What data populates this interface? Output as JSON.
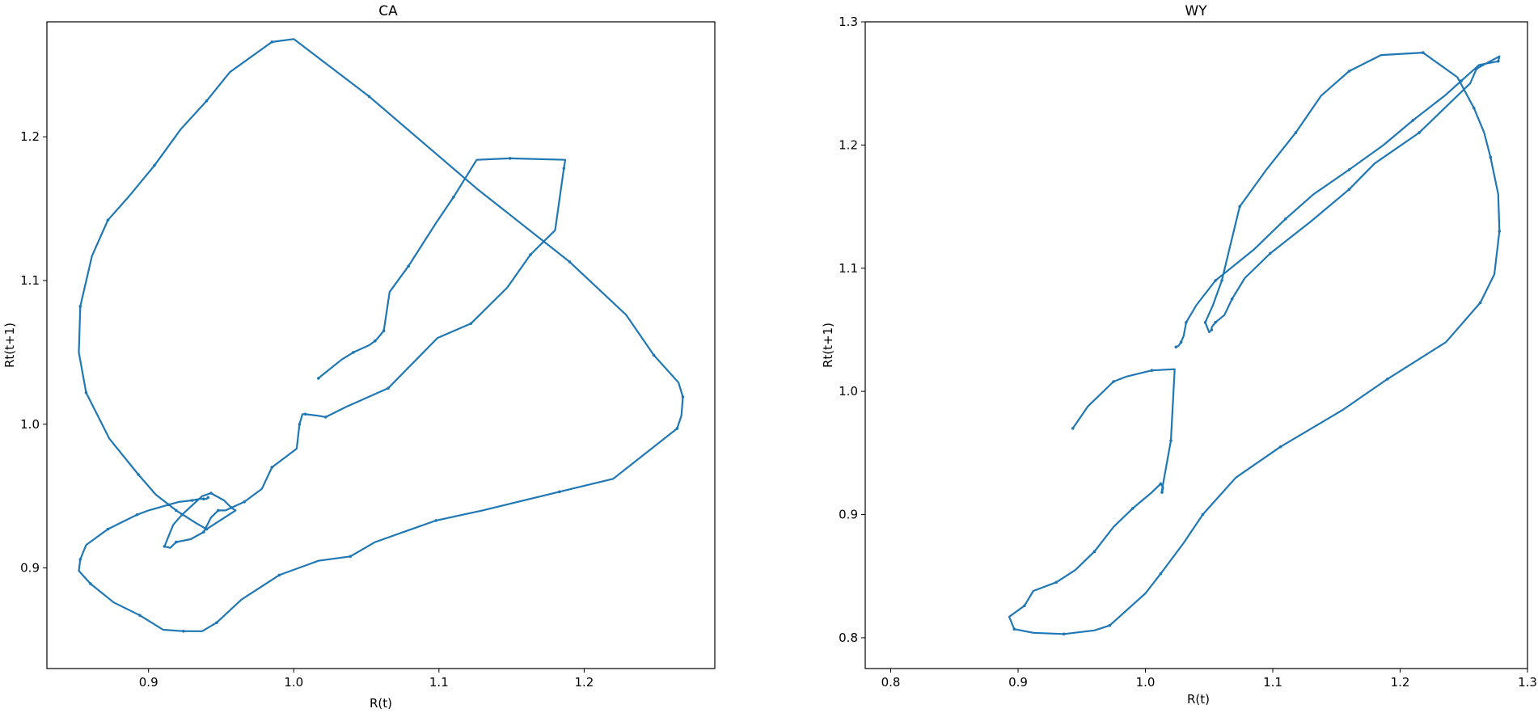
{
  "chart_data": [
    {
      "type": "line",
      "title": "CA",
      "xlabel": "R(t)",
      "ylabel": "Rt(t+1)",
      "xlim": [
        0.83,
        1.29
      ],
      "ylim": [
        0.83,
        1.28
      ],
      "xticks": [
        0.9,
        1.0,
        1.1,
        1.2
      ],
      "xtick_labels": [
        "0.9",
        "1.0",
        "1.1",
        "1.2"
      ],
      "yticks": [
        0.9,
        1.0,
        1.1,
        1.2
      ],
      "ytick_labels": [
        "0.9",
        "1.0",
        "1.1",
        "1.2"
      ],
      "grid": false,
      "line_color": "#1f77b4",
      "series": [
        {
          "x": [
            1.017,
            1.033,
            1.041,
            1.052,
            1.056,
            1.058,
            1.062,
            1.066,
            1.079,
            1.098,
            1.11,
            1.126,
            1.149,
            1.187,
            1.186,
            1.18,
            1.163,
            1.147,
            1.122,
            1.099,
            1.065,
            1.036,
            1.022,
            1.016,
            1.008,
            1.006,
            1.004,
            1.002,
            0.985,
            0.978,
            0.966,
            0.953,
            0.948,
            0.943,
            0.938,
            0.929,
            0.919,
            0.915,
            0.911,
            0.917,
            0.923,
            0.937,
            0.943,
            0.952,
            0.957,
            0.96,
            0.94,
            0.933,
            0.919,
            0.905,
            0.893,
            0.873,
            0.857,
            0.852,
            0.853,
            0.861,
            0.872,
            0.886,
            0.904,
            0.922,
            0.94,
            0.956,
            0.985,
            1.0,
            1.052,
            1.126,
            1.19,
            1.229,
            1.248,
            1.265,
            1.268,
            1.267,
            1.264,
            1.22,
            1.183,
            1.13,
            1.098,
            1.056,
            1.039,
            1.017,
            0.99,
            0.964,
            0.947,
            0.937,
            0.924,
            0.91,
            0.894,
            0.876,
            0.86,
            0.852,
            0.853,
            0.857,
            0.872,
            0.884,
            0.892,
            0.9,
            0.914,
            0.921,
            0.93,
            0.935,
            0.938,
            0.94,
            0.941
          ],
          "y": [
            1.032,
            1.045,
            1.05,
            1.055,
            1.058,
            1.06,
            1.065,
            1.092,
            1.11,
            1.14,
            1.158,
            1.184,
            1.185,
            1.184,
            1.178,
            1.135,
            1.118,
            1.095,
            1.07,
            1.06,
            1.025,
            1.012,
            1.005,
            1.006,
            1.007,
            1.007,
            1.0,
            0.983,
            0.97,
            0.955,
            0.946,
            0.94,
            0.94,
            0.935,
            0.925,
            0.92,
            0.918,
            0.914,
            0.915,
            0.93,
            0.937,
            0.95,
            0.952,
            0.947,
            0.942,
            0.94,
            0.927,
            0.931,
            0.94,
            0.951,
            0.965,
            0.99,
            1.022,
            1.05,
            1.082,
            1.117,
            1.142,
            1.158,
            1.18,
            1.205,
            1.225,
            1.245,
            1.266,
            1.268,
            1.228,
            1.164,
            1.113,
            1.076,
            1.048,
            1.029,
            1.019,
            1.006,
            0.997,
            0.962,
            0.953,
            0.94,
            0.933,
            0.918,
            0.908,
            0.905,
            0.895,
            0.878,
            0.862,
            0.856,
            0.856,
            0.857,
            0.867,
            0.876,
            0.889,
            0.898,
            0.906,
            0.916,
            0.927,
            0.933,
            0.937,
            0.94,
            0.944,
            0.946,
            0.947,
            0.948,
            0.948,
            0.948,
            0.949
          ]
        }
      ]
    },
    {
      "type": "line",
      "title": "WY",
      "xlabel": "R(t)",
      "ylabel": "Rt(t+1)",
      "xlim": [
        0.78,
        1.3
      ],
      "ylim": [
        0.775,
        1.3
      ],
      "xticks": [
        0.8,
        0.9,
        1.0,
        1.1,
        1.2,
        1.3
      ],
      "xtick_labels": [
        "0.8",
        "0.9",
        "1.0",
        "1.1",
        "1.2",
        "1.3"
      ],
      "yticks": [
        0.8,
        0.9,
        1.0,
        1.1,
        1.2,
        1.3
      ],
      "ytick_labels": [
        "0.8",
        "0.9",
        "1.0",
        "1.1",
        "1.2",
        "1.3"
      ],
      "grid": false,
      "line_color": "#1f77b4",
      "series": [
        {
          "x": [
            0.943,
            0.955,
            0.975,
            0.985,
            1.005,
            1.023,
            1.02,
            1.013,
            1.013,
            1.014,
            1.012,
            1.005,
            0.99,
            0.975,
            0.96,
            0.945,
            0.93,
            0.912,
            0.905,
            0.893,
            0.897,
            0.912,
            0.936,
            0.96,
            0.972,
            1.0,
            1.012,
            1.03,
            1.045,
            1.071,
            1.106,
            1.155,
            1.19,
            1.236,
            1.263,
            1.274,
            1.278,
            1.277,
            1.271,
            1.266,
            1.258,
            1.245,
            1.218,
            1.185,
            1.16,
            1.138,
            1.118,
            1.095,
            1.074,
            1.067,
            1.06,
            1.053,
            1.047,
            1.05,
            1.052,
            1.052,
            1.055,
            1.062,
            1.068,
            1.078,
            1.098,
            1.13,
            1.16,
            1.18,
            1.215,
            1.255,
            1.26,
            1.278,
            1.277,
            1.262,
            1.248,
            1.235,
            1.21,
            1.187,
            1.16,
            1.132,
            1.11,
            1.085,
            1.055,
            1.04,
            1.032,
            1.03,
            1.028,
            1.026,
            1.024
          ],
          "y": [
            0.97,
            0.988,
            1.008,
            1.012,
            1.017,
            1.018,
            0.96,
            0.92,
            0.918,
            0.922,
            0.925,
            0.918,
            0.905,
            0.89,
            0.87,
            0.855,
            0.845,
            0.838,
            0.826,
            0.817,
            0.807,
            0.804,
            0.803,
            0.806,
            0.81,
            0.836,
            0.852,
            0.877,
            0.9,
            0.93,
            0.955,
            0.985,
            1.01,
            1.04,
            1.072,
            1.095,
            1.13,
            1.16,
            1.19,
            1.21,
            1.23,
            1.255,
            1.275,
            1.273,
            1.26,
            1.24,
            1.21,
            1.18,
            1.15,
            1.12,
            1.09,
            1.07,
            1.056,
            1.048,
            1.05,
            1.052,
            1.056,
            1.062,
            1.075,
            1.092,
            1.112,
            1.138,
            1.164,
            1.185,
            1.21,
            1.25,
            1.262,
            1.272,
            1.268,
            1.265,
            1.252,
            1.24,
            1.22,
            1.2,
            1.18,
            1.16,
            1.14,
            1.115,
            1.09,
            1.07,
            1.056,
            1.045,
            1.04,
            1.037,
            1.036
          ]
        }
      ]
    }
  ]
}
